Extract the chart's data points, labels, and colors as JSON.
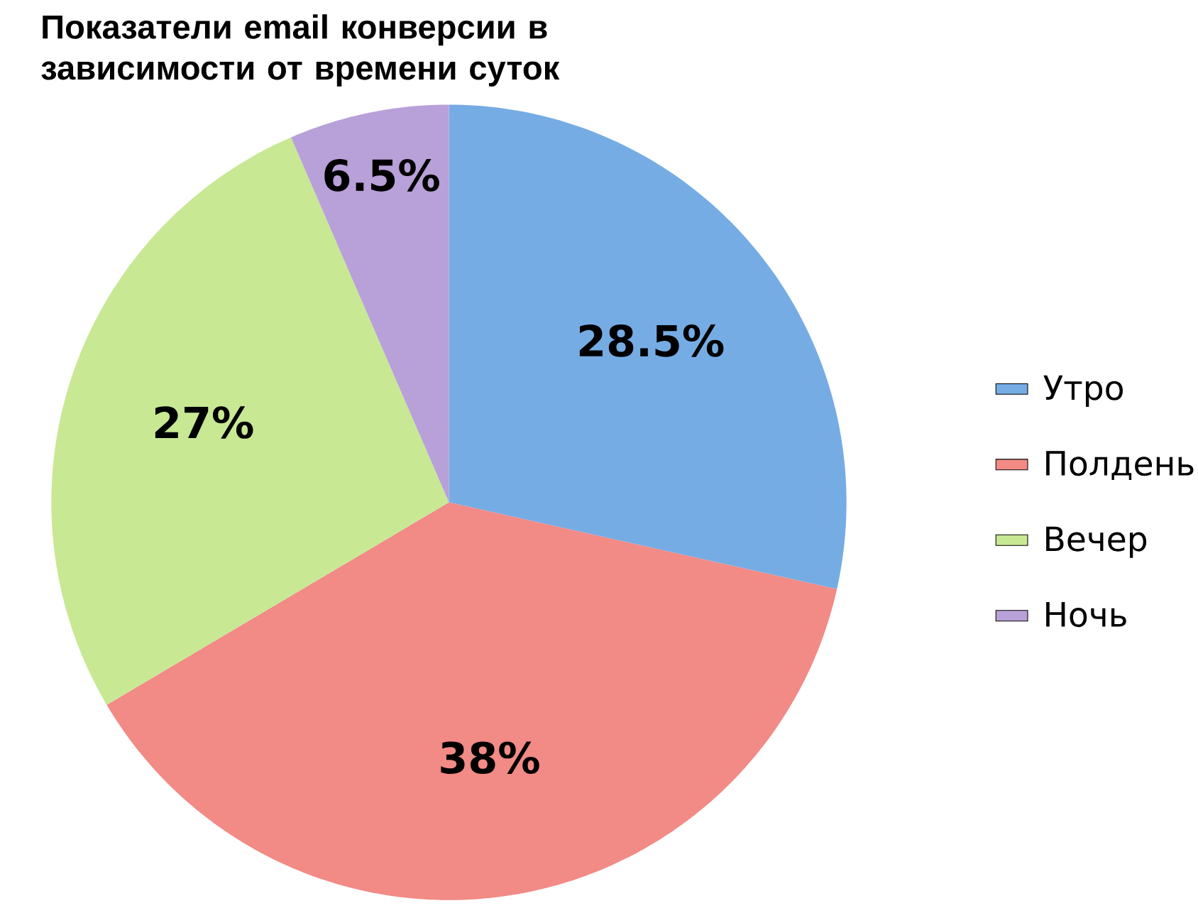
{
  "chart_data": {
    "type": "pie",
    "title": "Показатели email конверсии в зависимости от времени суток",
    "categories": [
      "Утро",
      "Полдень",
      "Вечер",
      "Ночь"
    ],
    "values": [
      28.5,
      38,
      27,
      6.5
    ],
    "colors": [
      "#76acE4",
      "#f28a86",
      "#c8e894",
      "#b8a0d8"
    ],
    "value_labels": [
      "28.5%",
      "38%",
      "27%",
      "6.5%"
    ],
    "legend": "right"
  }
}
